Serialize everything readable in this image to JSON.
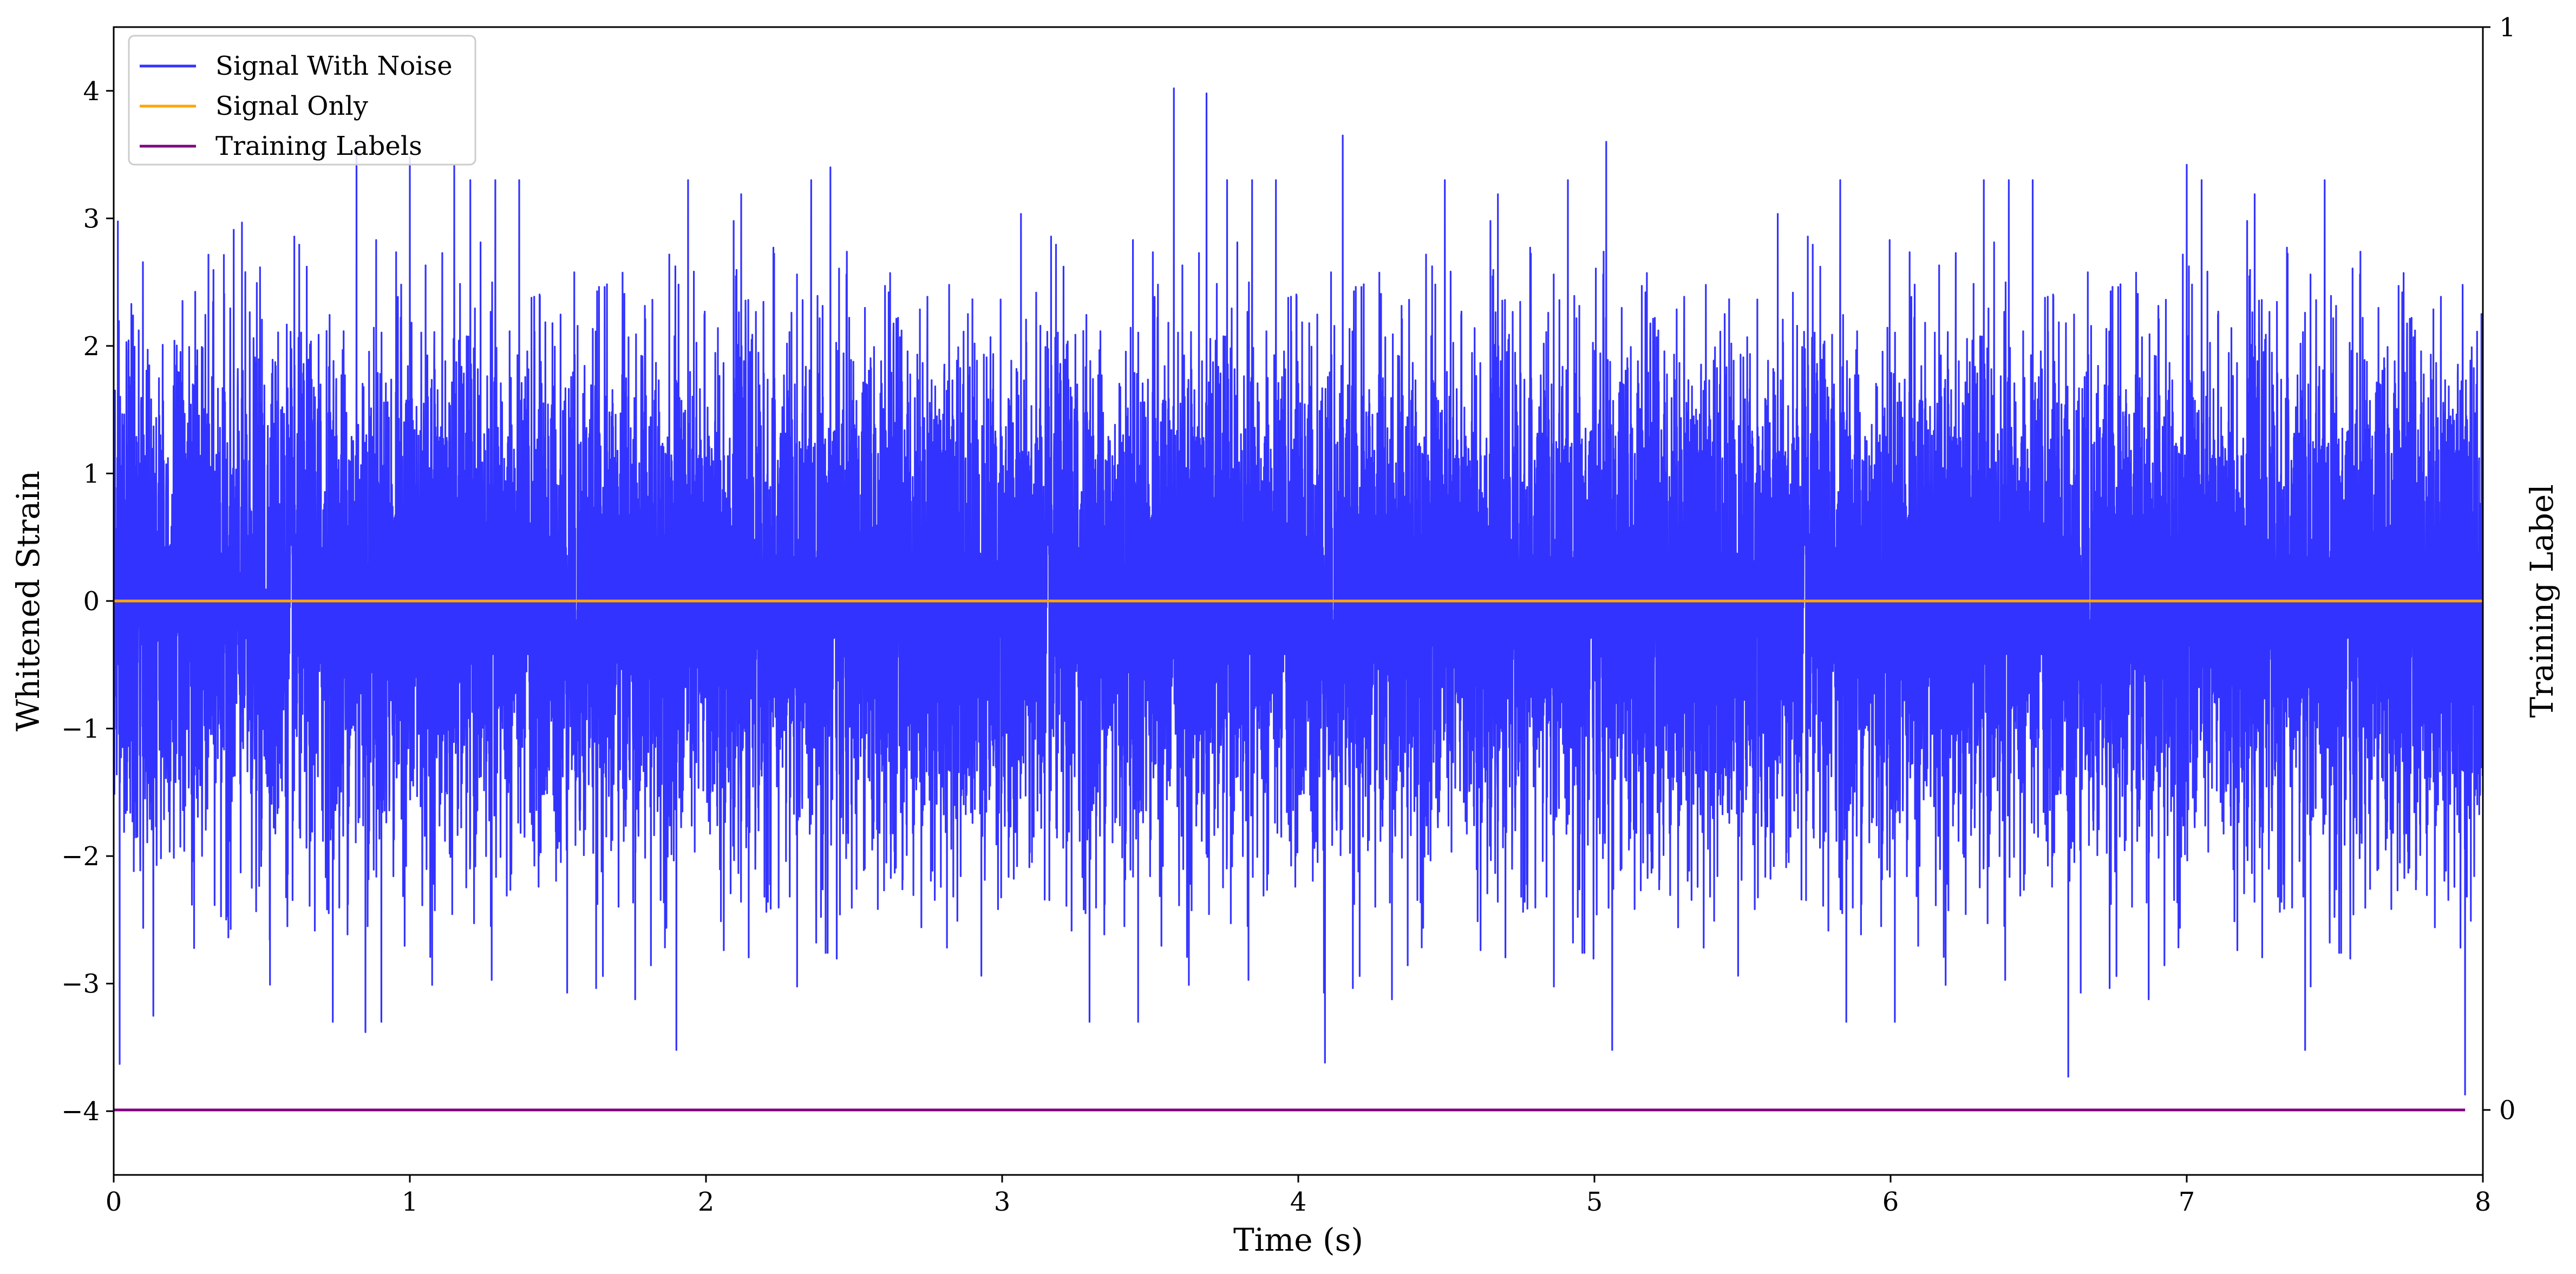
{
  "chart_data": {
    "type": "line",
    "title": "",
    "xlabel": "Time (s)",
    "ylabel": "Whitened Strain",
    "y2label": "Training Label",
    "xlim": [
      0,
      8
    ],
    "ylim": [
      -4.5,
      4.5
    ],
    "y2lim": [
      -0.06,
      1.0
    ],
    "x_ticks": [
      0,
      1,
      2,
      3,
      4,
      5,
      6,
      7,
      8
    ],
    "x_tick_labels": [
      "0",
      "1",
      "2",
      "3",
      "4",
      "5",
      "6",
      "7",
      "8"
    ],
    "y_ticks": [
      -4,
      -3,
      -2,
      -1,
      0,
      1,
      2,
      3,
      4
    ],
    "y_tick_labels": [
      "−4",
      "−3",
      "−2",
      "−1",
      "0",
      "1",
      "2",
      "3",
      "4"
    ],
    "y2_ticks": [
      0,
      1
    ],
    "y2_tick_labels": [
      "0",
      "1"
    ],
    "grid": false,
    "legend_position": "top-left",
    "series": [
      {
        "name": "Signal With Noise",
        "color": "#3333ff",
        "axis": "left",
        "description_kind": "noise",
        "std": 1.0,
        "x_range": [
          0,
          8
        ],
        "notable_peaks": [
          {
            "x": 3.58,
            "y": 4.02
          },
          {
            "x": 3.69,
            "y": 3.98
          },
          {
            "x": 4.15,
            "y": 3.65
          },
          {
            "x": 5.04,
            "y": 3.6
          },
          {
            "x": 0.82,
            "y": 3.55
          },
          {
            "x": 1.0,
            "y": 3.48
          },
          {
            "x": 1.15,
            "y": 3.42
          },
          {
            "x": 2.42,
            "y": 3.4
          },
          {
            "x": 7.0,
            "y": 3.42
          },
          {
            "x": 5.83,
            "y": 3.3
          },
          {
            "x": 0.02,
            "y": -3.63
          },
          {
            "x": 0.85,
            "y": -3.38
          },
          {
            "x": 1.9,
            "y": -3.52
          },
          {
            "x": 4.09,
            "y": -3.62
          },
          {
            "x": 5.06,
            "y": -3.52
          },
          {
            "x": 6.6,
            "y": -3.73
          },
          {
            "x": 7.94,
            "y": -3.87
          },
          {
            "x": 7.4,
            "y": -3.52
          }
        ]
      },
      {
        "name": "Signal Only",
        "color": "#ffa500",
        "axis": "left",
        "x": [
          0,
          8
        ],
        "y": [
          0,
          0
        ]
      },
      {
        "name": "Training Labels",
        "color": "#800080",
        "axis": "right",
        "x": [
          0,
          7.94
        ],
        "y": [
          0,
          0
        ]
      }
    ]
  }
}
